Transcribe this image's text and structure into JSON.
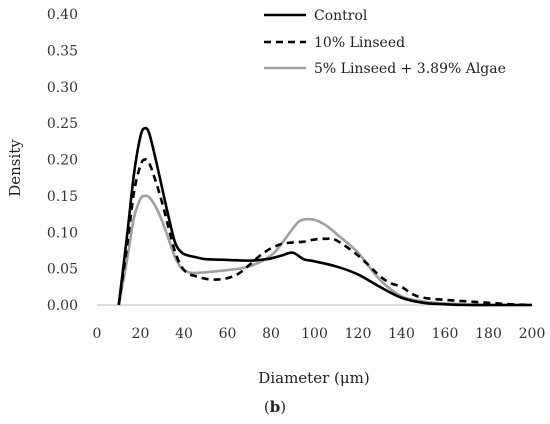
{
  "chart_data": {
    "type": "line",
    "title": "",
    "xlabel": "Diameter (μm)",
    "ylabel": "Density",
    "xlim": [
      0,
      200
    ],
    "ylim": [
      0,
      0.4
    ],
    "x_ticks": [
      "0",
      "20",
      "40",
      "60",
      "80",
      "100",
      "120",
      "140",
      "160",
      "180",
      "200"
    ],
    "y_ticks": [
      "0.00",
      "0.05",
      "0.10",
      "0.15",
      "0.20",
      "0.25",
      "0.30",
      "0.35",
      "0.40"
    ],
    "grid": false,
    "legend_position": "top-right",
    "series": [
      {
        "name": "Control",
        "color": "#000000",
        "style": "solid",
        "x": [
          10,
          14,
          17,
          20,
          22,
          24,
          27,
          30,
          33,
          36,
          39,
          42,
          45,
          50,
          60,
          70,
          75,
          80,
          85,
          90,
          95,
          100,
          110,
          120,
          130,
          140,
          150,
          160,
          170,
          180,
          190,
          200
        ],
        "y": [
          0.0,
          0.1,
          0.18,
          0.232,
          0.243,
          0.236,
          0.2,
          0.16,
          0.12,
          0.085,
          0.072,
          0.068,
          0.066,
          0.063,
          0.062,
          0.061,
          0.062,
          0.064,
          0.068,
          0.072,
          0.063,
          0.06,
          0.053,
          0.042,
          0.025,
          0.01,
          0.003,
          0.001,
          0.0,
          0.0,
          0.0,
          0.0
        ]
      },
      {
        "name": "10% Linseed",
        "color": "#000000",
        "style": "dashed",
        "x": [
          10,
          14,
          17,
          20,
          22,
          24,
          27,
          30,
          33,
          36,
          39,
          42,
          45,
          50,
          55,
          60,
          65,
          70,
          75,
          80,
          85,
          90,
          95,
          100,
          105,
          110,
          120,
          130,
          135,
          140,
          145,
          150,
          160,
          170,
          180,
          190,
          200
        ],
        "y": [
          0.0,
          0.085,
          0.155,
          0.192,
          0.2,
          0.195,
          0.17,
          0.14,
          0.105,
          0.072,
          0.052,
          0.043,
          0.04,
          0.036,
          0.035,
          0.037,
          0.043,
          0.055,
          0.068,
          0.078,
          0.084,
          0.086,
          0.087,
          0.09,
          0.091,
          0.089,
          0.068,
          0.04,
          0.03,
          0.025,
          0.015,
          0.01,
          0.007,
          0.005,
          0.003,
          0.001,
          0.0
        ]
      },
      {
        "name": "5% Linseed + 3.89% Algae",
        "color": "#a0a0a0",
        "style": "solid",
        "x": [
          10,
          14,
          17,
          20,
          22,
          24,
          27,
          30,
          33,
          36,
          39,
          42,
          45,
          50,
          60,
          70,
          80,
          85,
          90,
          93,
          96,
          100,
          105,
          110,
          120,
          130,
          140,
          150,
          160,
          170,
          180,
          190,
          200
        ],
        "y": [
          0.0,
          0.065,
          0.12,
          0.146,
          0.15,
          0.148,
          0.135,
          0.115,
          0.09,
          0.065,
          0.05,
          0.045,
          0.044,
          0.045,
          0.048,
          0.053,
          0.068,
          0.085,
          0.105,
          0.115,
          0.118,
          0.117,
          0.11,
          0.098,
          0.072,
          0.035,
          0.012,
          0.005,
          0.002,
          0.001,
          0.0,
          0.0,
          0.0
        ]
      }
    ]
  },
  "caption": {
    "open": "(",
    "label": "b",
    "close": ")"
  }
}
